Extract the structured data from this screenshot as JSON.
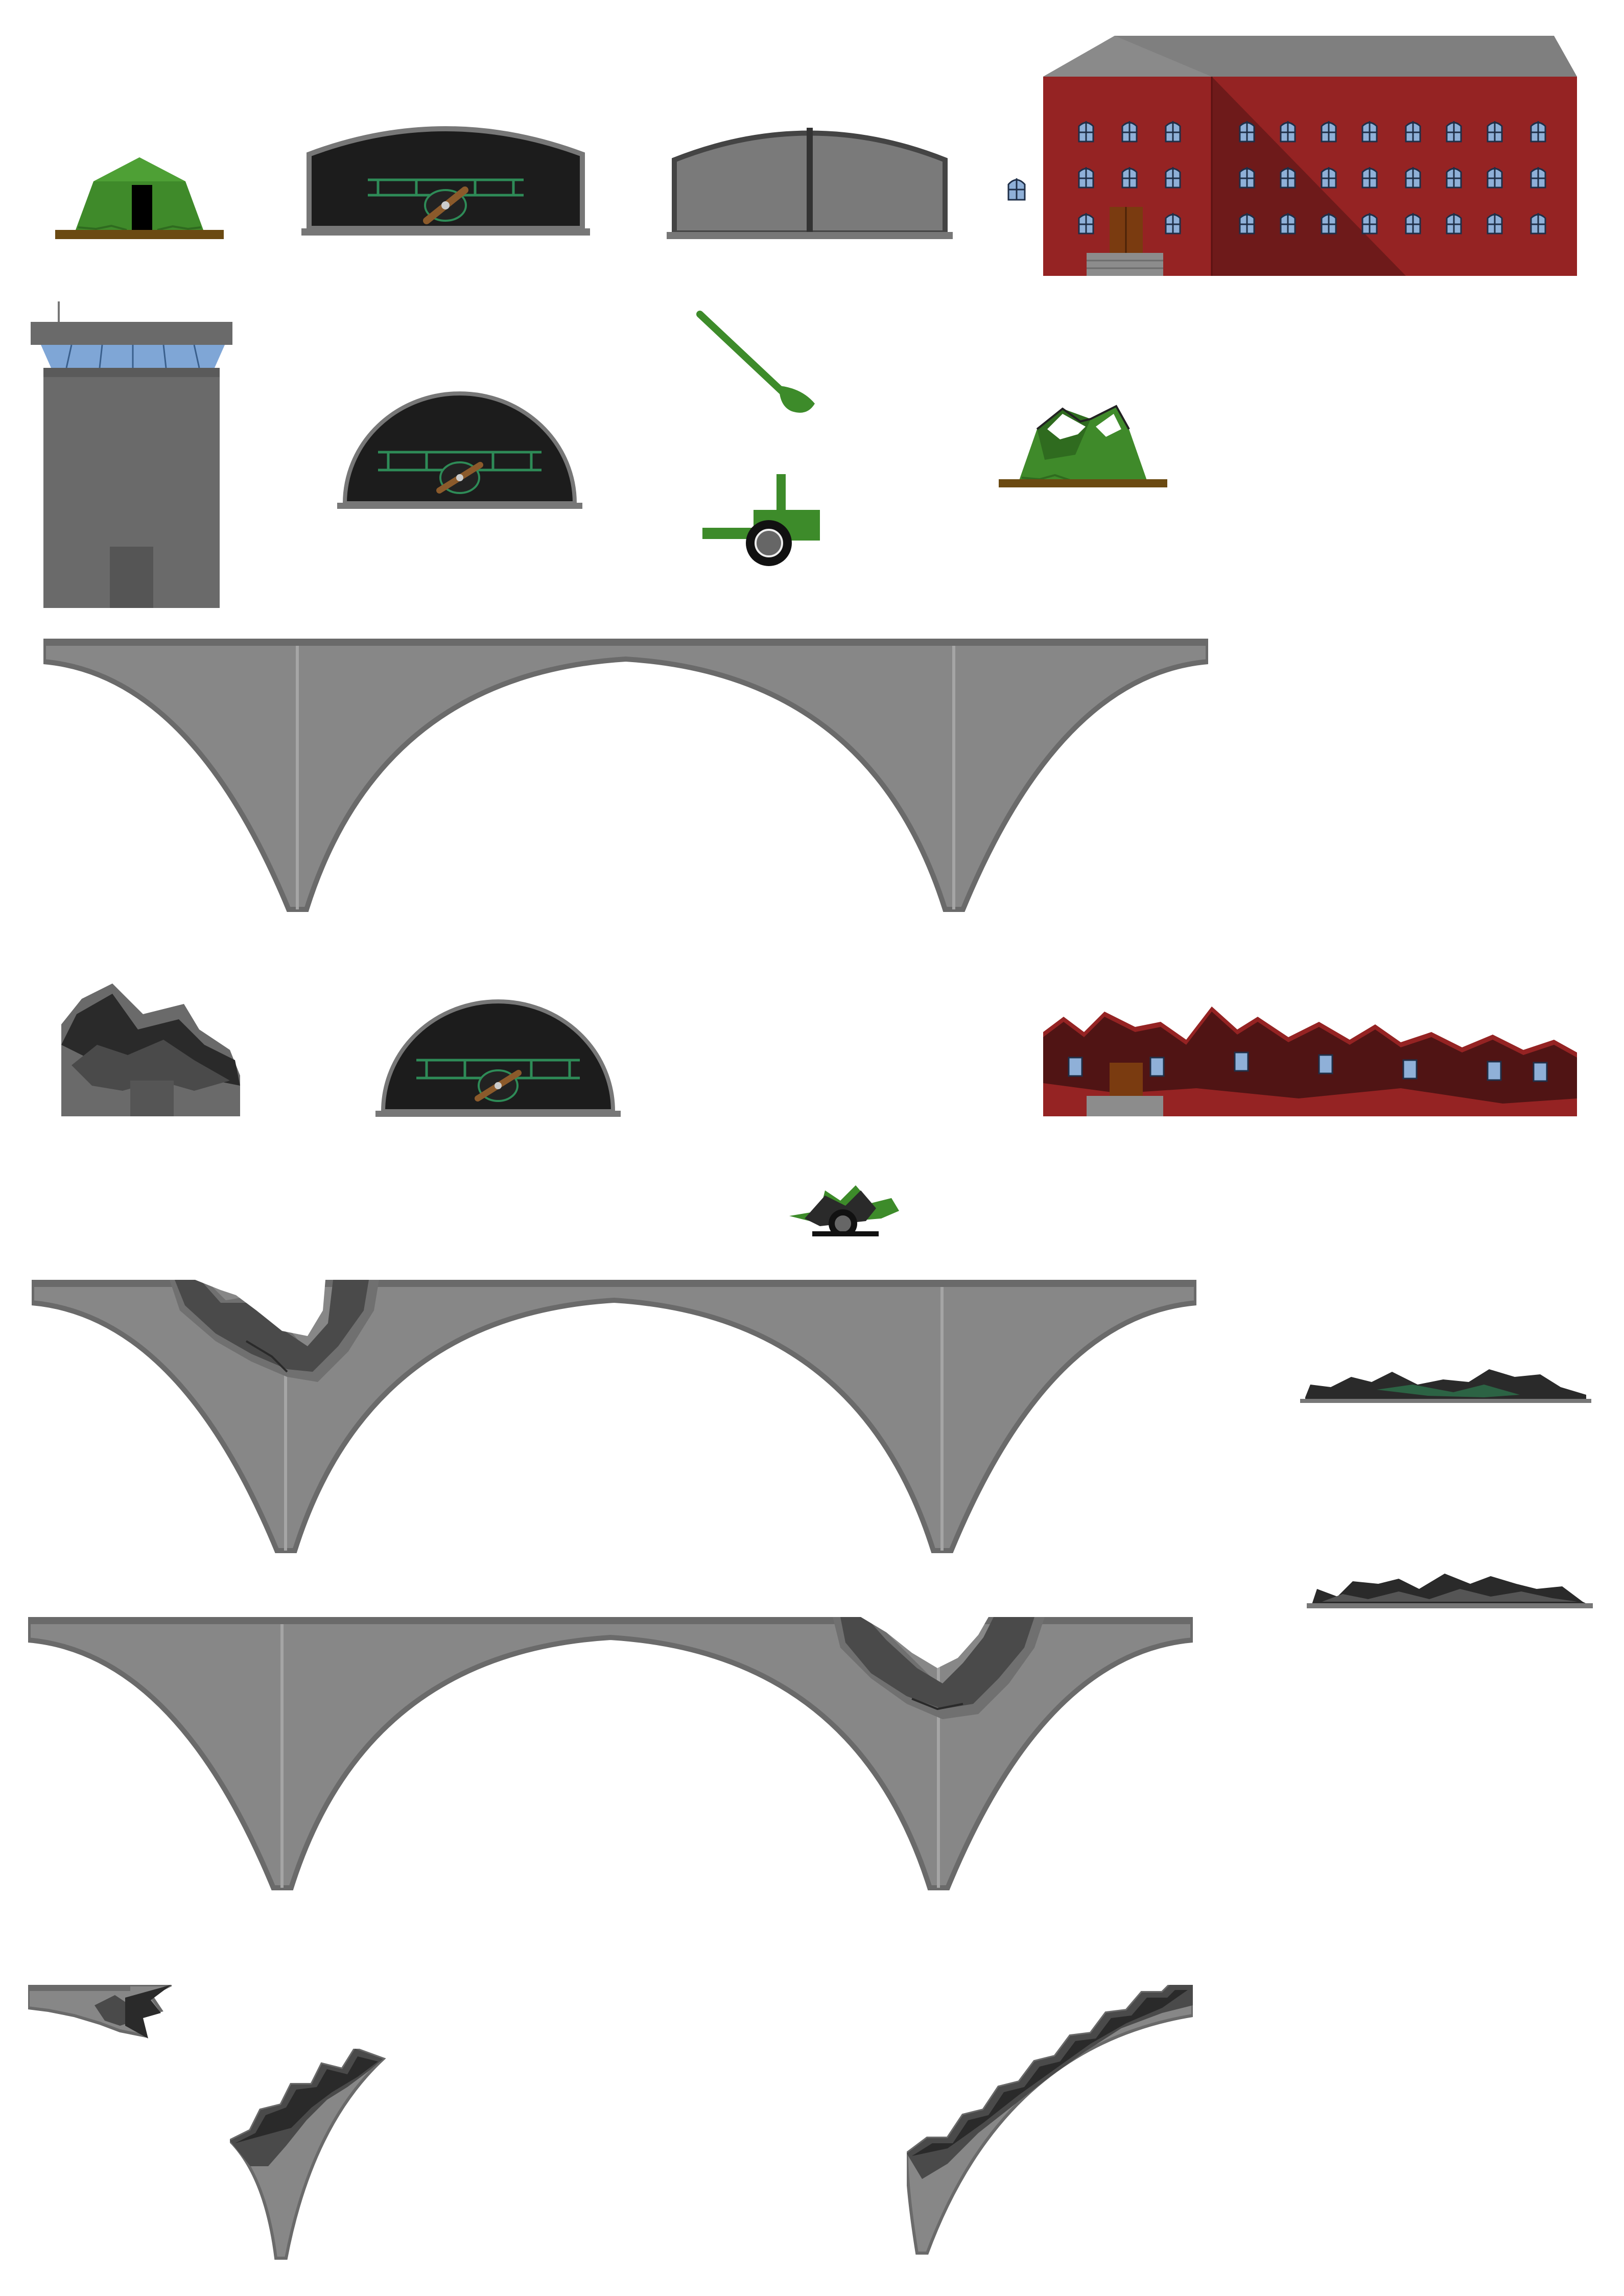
{
  "sheet": {
    "background": "#ffffff",
    "sprites": [
      {
        "name": "tent",
        "state": "intact"
      },
      {
        "name": "hangar-open-biplane",
        "state": "intact"
      },
      {
        "name": "hangar-closed",
        "state": "intact"
      },
      {
        "name": "barracks-building",
        "state": "intact"
      },
      {
        "name": "window-tile",
        "state": "intact"
      },
      {
        "name": "control-tower",
        "state": "intact"
      },
      {
        "name": "round-hangar-biplane",
        "state": "intact"
      },
      {
        "name": "gun-barrel",
        "state": "part"
      },
      {
        "name": "gun-carriage",
        "state": "part"
      },
      {
        "name": "tent",
        "state": "damaged"
      },
      {
        "name": "arch-bridge",
        "state": "intact"
      },
      {
        "name": "control-tower",
        "state": "destroyed"
      },
      {
        "name": "round-hangar-biplane",
        "state": "intact-variant"
      },
      {
        "name": "barracks-building",
        "state": "destroyed"
      },
      {
        "name": "field-gun",
        "state": "destroyed"
      },
      {
        "name": "arch-bridge",
        "state": "damaged-left"
      },
      {
        "name": "rubble-hangar",
        "state": "destroyed"
      },
      {
        "name": "arch-bridge",
        "state": "damaged-right"
      },
      {
        "name": "rubble-hangar-closed",
        "state": "destroyed"
      },
      {
        "name": "bridge-fragment-left-deck",
        "state": "debris"
      },
      {
        "name": "bridge-fragment-left-pier",
        "state": "debris"
      },
      {
        "name": "bridge-fragment-right-pier",
        "state": "debris"
      }
    ]
  },
  "colors": {
    "tent_green": "#3f8a2a",
    "tent_dark": "#2f6b1f",
    "ground_brown": "#6b4a12",
    "hangar_dark": "#1c1c1c",
    "hangar_grey": "#7a7a7a",
    "hangar_frame": "#5a5a5a",
    "wing_green": "#2e8b57",
    "propeller_brown": "#8b5a2b",
    "building_red": "#952323",
    "building_red_shadow": "#6e1a1a",
    "roof_grey": "#7f7f7f",
    "window_blue": "#8fb0d8",
    "door_brown": "#7a3b10",
    "stairs_grey": "#8c8c8c",
    "tower_grey": "#6a6a6a",
    "tower_glass": "#7fa6d6",
    "bridge_grey": "#878787",
    "bridge_edge": "#6a6a6a",
    "gun_green": "#3d8b2a",
    "wheel_black": "#111111",
    "smoke_dark": "#2a2a2a",
    "smoke_mid": "#4a4a4a",
    "smoke_light": "#707070"
  }
}
